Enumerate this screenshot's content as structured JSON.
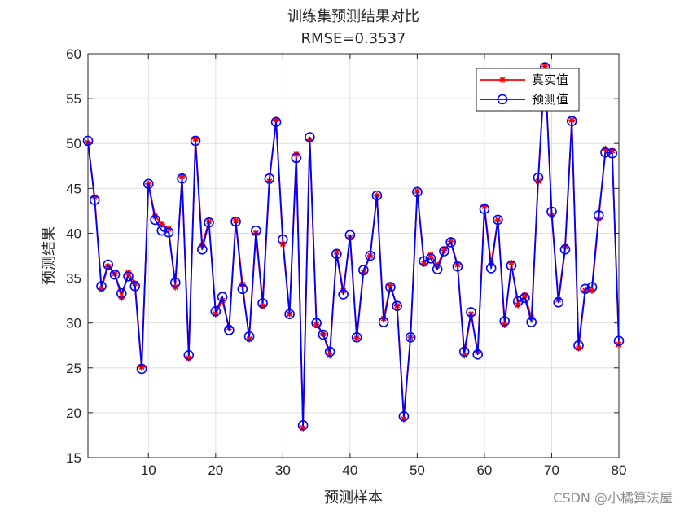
{
  "chart_data": {
    "type": "line",
    "title": "训练集预测结果对比",
    "subtitle": "RMSE=0.3537",
    "xlabel": "预测样本",
    "ylabel": "预测结果",
    "xlim": [
      1,
      80
    ],
    "ylim": [
      15,
      60
    ],
    "xticks": [
      10,
      20,
      30,
      40,
      50,
      60,
      70,
      80
    ],
    "yticks": [
      15,
      20,
      25,
      30,
      35,
      40,
      45,
      50,
      55,
      60
    ],
    "grid": true,
    "legend_position": "top-right",
    "x": [
      1,
      2,
      3,
      4,
      5,
      6,
      7,
      8,
      9,
      10,
      11,
      12,
      13,
      14,
      15,
      16,
      17,
      18,
      19,
      20,
      21,
      22,
      23,
      24,
      25,
      26,
      27,
      28,
      29,
      30,
      31,
      32,
      33,
      34,
      35,
      36,
      37,
      38,
      39,
      40,
      41,
      42,
      43,
      44,
      45,
      46,
      47,
      48,
      49,
      50,
      51,
      52,
      53,
      54,
      55,
      56,
      57,
      58,
      59,
      60,
      61,
      62,
      63,
      64,
      65,
      66,
      67,
      68,
      69,
      70,
      71,
      72,
      73,
      74,
      75,
      76,
      77,
      78,
      79,
      80
    ],
    "series": [
      {
        "name": "真实值",
        "color": "#ff0000",
        "marker": "star",
        "values": [
          50.1,
          44.0,
          33.8,
          36.3,
          35.5,
          32.8,
          35.6,
          34.4,
          25.1,
          45.5,
          41.9,
          41.0,
          40.5,
          34.0,
          46.3,
          26.1,
          50.5,
          38.7,
          41.3,
          31.0,
          32.5,
          29.5,
          41.4,
          34.3,
          28.2,
          40.0,
          31.9,
          45.8,
          52.6,
          38.8,
          31.0,
          48.8,
          18.3,
          50.4,
          29.8,
          28.8,
          26.4,
          37.9,
          33.6,
          39.5,
          28.3,
          35.6,
          37.5,
          44.2,
          30.5,
          34.2,
          31.9,
          19.3,
          28.4,
          44.7,
          36.6,
          37.6,
          36.4,
          38.1,
          39.1,
          36.5,
          26.4,
          31.0,
          26.8,
          43.0,
          36.6,
          41.5,
          29.8,
          36.7,
          32.0,
          33.1,
          30.6,
          45.8,
          58.6,
          42.0,
          32.6,
          38.5,
          52.6,
          27.2,
          33.6,
          33.6,
          41.6,
          49.4,
          49.2,
          27.6
        ]
      },
      {
        "name": "预测值",
        "color": "#0000ff",
        "marker": "circle",
        "values": [
          50.3,
          43.7,
          34.1,
          36.5,
          35.4,
          33.3,
          35.2,
          34.1,
          24.9,
          45.5,
          41.5,
          40.3,
          40.1,
          34.5,
          46.1,
          26.4,
          50.3,
          38.2,
          41.2,
          31.3,
          32.9,
          29.2,
          41.3,
          33.8,
          28.5,
          40.3,
          32.2,
          46.1,
          52.4,
          39.3,
          31.0,
          48.4,
          18.6,
          50.7,
          30.0,
          28.7,
          26.8,
          37.7,
          33.2,
          39.8,
          28.4,
          35.9,
          37.5,
          44.2,
          30.1,
          34.0,
          31.9,
          19.6,
          28.4,
          44.6,
          36.9,
          37.2,
          36.0,
          38.0,
          39.0,
          36.3,
          26.8,
          31.2,
          26.5,
          42.7,
          36.1,
          41.5,
          30.2,
          36.4,
          32.4,
          32.8,
          30.1,
          46.2,
          58.5,
          42.4,
          32.3,
          38.2,
          52.5,
          27.5,
          33.8,
          34.0,
          42.0,
          49.0,
          48.9,
          28.0
        ]
      }
    ]
  },
  "legend": {
    "items": [
      {
        "label": "真实值",
        "color": "#ff0000",
        "marker": "star"
      },
      {
        "label": "预测值",
        "color": "#0000ff",
        "marker": "circle"
      }
    ]
  },
  "watermark": "CSDN @小橘算法屋"
}
